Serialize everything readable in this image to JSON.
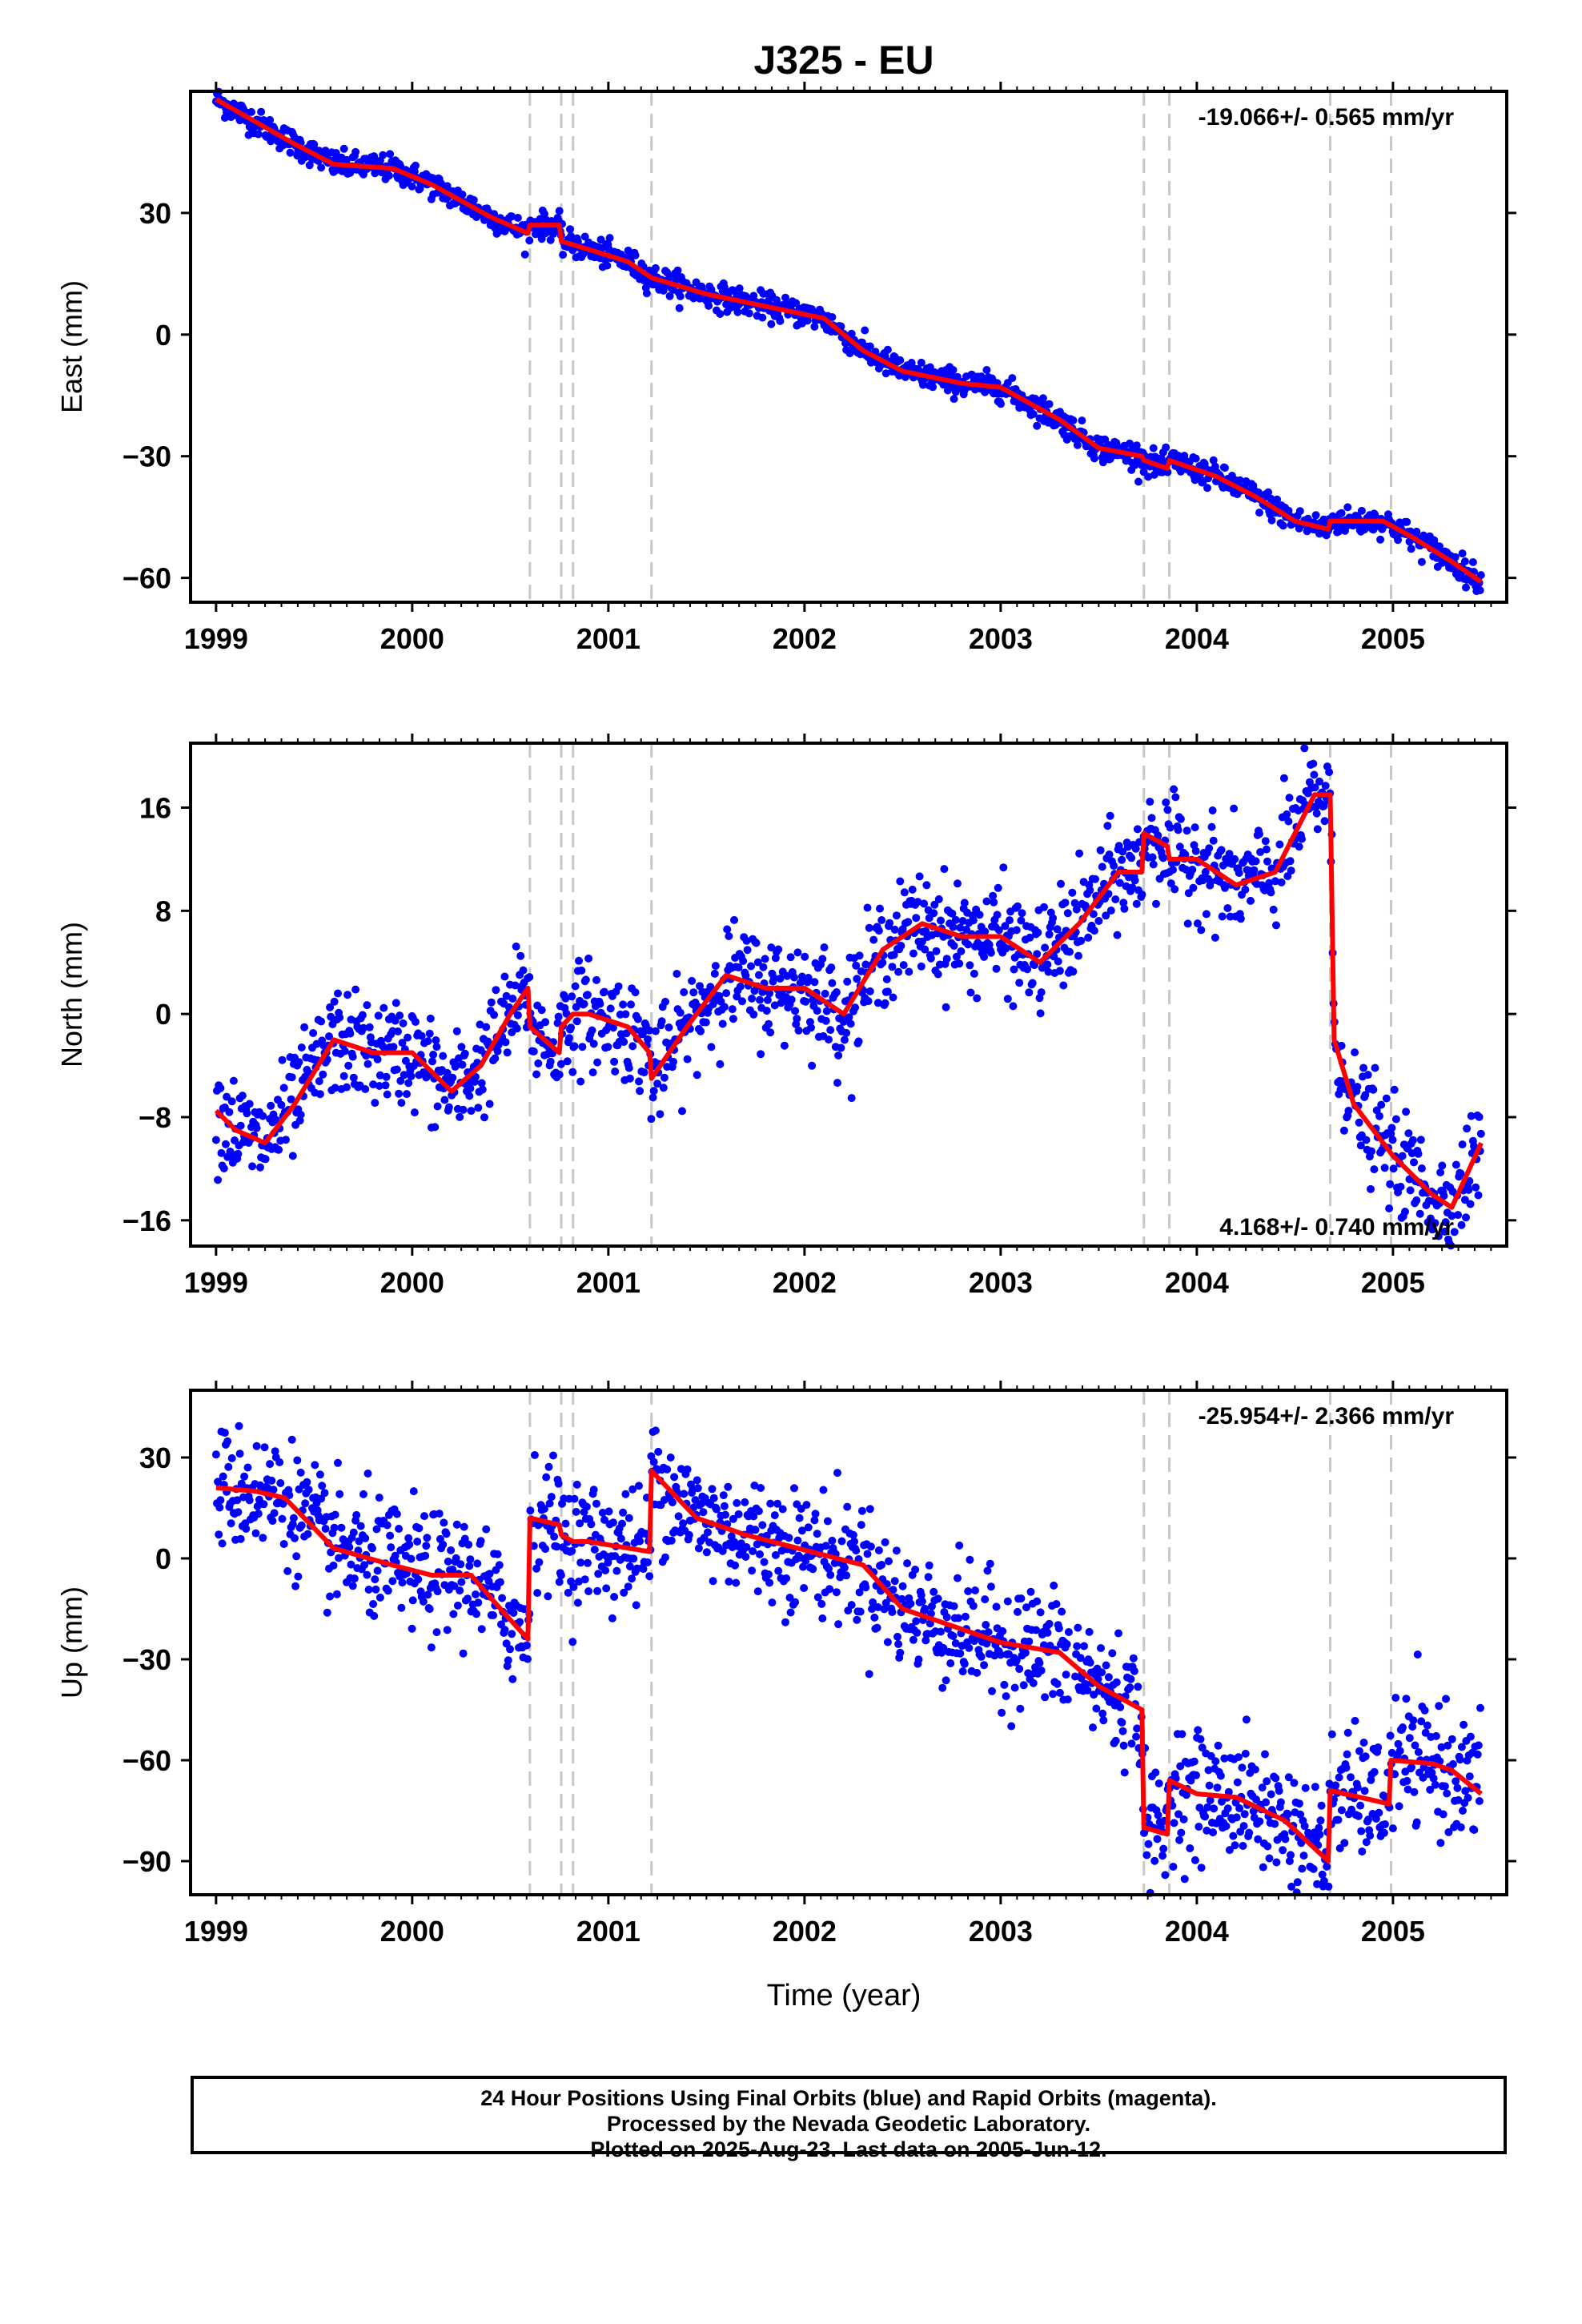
{
  "title": "J325 - EU",
  "xlabel": "Time (year)",
  "xticks": [
    "1999",
    "2000",
    "2001",
    "2002",
    "2003",
    "2004",
    "2005"
  ],
  "footer": {
    "line1": "24 Hour Positions Using Final Orbits (blue) and Rapid Orbits (magenta).",
    "line2": "Processed by the Nevada Geodetic Laboratory.",
    "line3": "Plotted on 2025-Aug-23. Last data on 2005-Jun-12."
  },
  "colors": {
    "points": "#0000ff",
    "model": "#ff0000",
    "steps": "#c8c8c8"
  },
  "chart_data": [
    {
      "type": "scatter",
      "ylabel": "East (mm)",
      "rate_label": "-19.066+/- 0.565 mm/yr",
      "rate_position": "top-right",
      "xlim": [
        1998.87,
        2005.58
      ],
      "ylim": [
        -66,
        60
      ],
      "yticks": [
        30,
        0,
        -30,
        -60
      ],
      "step_epochs": [
        2000.6,
        2000.76,
        2000.82,
        2001.22,
        2003.73,
        2003.86,
        2004.68,
        2004.99
      ],
      "data_range": [
        1999.0,
        2005.45
      ],
      "noise": 1.6,
      "series": [
        {
          "name": "model",
          "x": [
            1999.0,
            1999.4,
            1999.6,
            1999.9,
            2000.1,
            2000.4,
            2000.59,
            2000.6,
            2000.75,
            2000.76,
            2000.9,
            2001.1,
            2001.22,
            2001.5,
            2001.8,
            2002.1,
            2002.3,
            2002.5,
            2002.8,
            2003.0,
            2003.3,
            2003.5,
            2003.72,
            2003.73,
            2003.85,
            2003.86,
            2004.1,
            2004.3,
            2004.5,
            2004.67,
            2004.68,
            2004.95,
            2005.1,
            2005.3,
            2005.45
          ],
          "y": [
            58,
            47,
            42,
            41,
            37,
            29,
            25,
            27,
            27,
            23,
            21,
            18,
            14,
            10,
            7,
            4,
            -4,
            -9,
            -12,
            -13,
            -21,
            -28,
            -30,
            -31,
            -33,
            -31,
            -35,
            -40,
            -46,
            -48,
            -46,
            -46,
            -50,
            -56,
            -61
          ]
        }
      ]
    },
    {
      "type": "scatter",
      "ylabel": "North (mm)",
      "rate_label": "4.168+/- 0.740 mm/yr",
      "rate_position": "bottom-right",
      "xlim": [
        1998.87,
        2005.58
      ],
      "ylim": [
        -18,
        21
      ],
      "yticks": [
        16,
        8,
        0,
        -8,
        -16
      ],
      "step_epochs": [
        2000.6,
        2000.76,
        2000.82,
        2001.22,
        2003.73,
        2003.86,
        2004.68,
        2004.99
      ],
      "data_range": [
        1999.0,
        2005.45
      ],
      "noise": 2.0,
      "series": [
        {
          "name": "model",
          "x": [
            1999.0,
            1999.1,
            1999.25,
            1999.4,
            1999.6,
            1999.8,
            2000.0,
            2000.2,
            2000.35,
            2000.5,
            2000.59,
            2000.6,
            2000.75,
            2000.76,
            2000.82,
            2000.9,
            2001.1,
            2001.21,
            2001.22,
            2001.4,
            2001.6,
            2001.8,
            2002.0,
            2002.2,
            2002.4,
            2002.6,
            2002.8,
            2003.0,
            2003.2,
            2003.4,
            2003.6,
            2003.72,
            2003.73,
            2003.85,
            2003.86,
            2004.0,
            2004.2,
            2004.4,
            2004.6,
            2004.68,
            2004.7,
            2004.8,
            2005.0,
            2005.2,
            2005.3,
            2005.45
          ],
          "y": [
            -7.5,
            -9,
            -10,
            -7,
            -2,
            -3,
            -3,
            -6,
            -4,
            0,
            2,
            -1,
            -3,
            -1,
            0,
            0,
            -1,
            -3,
            -5,
            -1,
            3,
            2,
            2,
            0,
            5,
            7,
            6,
            6,
            4,
            7,
            11,
            11,
            14,
            13,
            12,
            12,
            10,
            11,
            17,
            17,
            -2,
            -7,
            -11,
            -14,
            -15,
            -10
          ]
        }
      ]
    },
    {
      "type": "scatter",
      "ylabel": "Up (mm)",
      "rate_label": "-25.954+/- 2.366 mm/yr",
      "rate_position": "top-right",
      "xlim": [
        1998.87,
        2005.58
      ],
      "ylim": [
        -100,
        50
      ],
      "yticks": [
        30,
        0,
        -30,
        -60,
        -90
      ],
      "step_epochs": [
        2000.6,
        2000.76,
        2000.82,
        2001.22,
        2003.73,
        2003.86,
        2004.68,
        2004.99
      ],
      "data_range": [
        1999.0,
        2003.35
      ],
      "data_range2": [
        2003.38,
        2005.45
      ],
      "noise": 9.0,
      "series": [
        {
          "name": "model",
          "x": [
            1999.0,
            1999.2,
            1999.35,
            1999.6,
            1999.9,
            2000.1,
            2000.3,
            2000.45,
            2000.59,
            2000.6,
            2000.75,
            2000.76,
            2000.82,
            2000.9,
            2001.21,
            2001.22,
            2001.45,
            2001.7,
            2001.9,
            2002.1,
            2002.3,
            2002.5,
            2002.7,
            2003.0,
            2003.3,
            2003.5,
            2003.72,
            2003.73,
            2003.85,
            2003.86,
            2004.0,
            2004.2,
            2004.45,
            2004.67,
            2004.68,
            2004.98,
            2004.99,
            2005.2,
            2005.3,
            2005.45
          ],
          "y": [
            21,
            20,
            18,
            3,
            -2,
            -5,
            -5,
            -15,
            -24,
            12,
            10,
            7,
            5,
            5,
            2,
            26,
            12,
            7,
            4,
            1,
            -2,
            -15,
            -19,
            -25,
            -28,
            -38,
            -45,
            -80,
            -82,
            -66,
            -70,
            -71,
            -78,
            -90,
            -69,
            -73,
            -60,
            -61,
            -63,
            -70
          ]
        }
      ]
    }
  ]
}
